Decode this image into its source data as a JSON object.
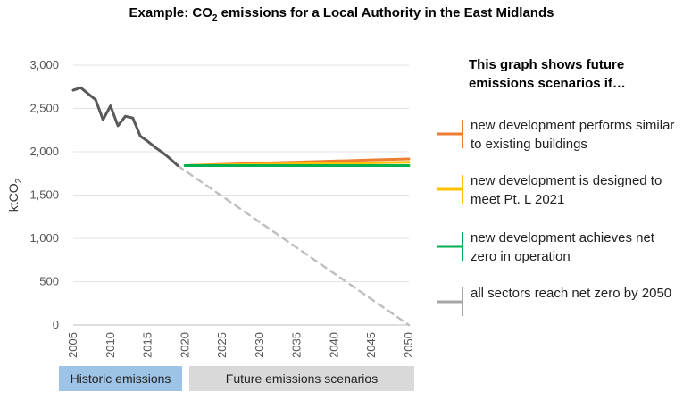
{
  "title_prefix": "Example: CO",
  "title_sub": "2",
  "title_suffix": " emissions for a Local Authority in the East Midlands",
  "chart_data": {
    "type": "line",
    "ylabel": "ktCO",
    "ylabel_sub": "2",
    "ylim": [
      0,
      3000
    ],
    "xlim": [
      2005,
      2050
    ],
    "y_ticks": [
      "0",
      "500",
      "1,000",
      "1,500",
      "2,000",
      "2,500",
      "3,000"
    ],
    "y_tick_values": [
      0,
      500,
      1000,
      1500,
      2000,
      2500,
      3000
    ],
    "x_ticks": [
      "2005",
      "2010",
      "2015",
      "2020",
      "2025",
      "2030",
      "2035",
      "2040",
      "2045",
      "2050"
    ],
    "grid": true,
    "series": [
      {
        "name": "historic",
        "color": "#595959",
        "style": "solid",
        "x": [
          2005,
          2006,
          2007,
          2008,
          2009,
          2010,
          2011,
          2012,
          2013,
          2014,
          2015,
          2016,
          2017,
          2018,
          2019
        ],
        "y": [
          2710,
          2740,
          2670,
          2600,
          2370,
          2530,
          2300,
          2410,
          2390,
          2180,
          2120,
          2050,
          1990,
          1920,
          1840
        ]
      },
      {
        "name": "new development performs similar to existing buildings",
        "color": "#ed7d31",
        "style": "solid",
        "x": [
          2020,
          2025,
          2030,
          2035,
          2040,
          2045,
          2050
        ],
        "y": [
          1840,
          1855,
          1868,
          1880,
          1893,
          1906,
          1918
        ]
      },
      {
        "name": "new development is designed to meet Pt. L 2021",
        "color": "#ffc000",
        "style": "solid",
        "x": [
          2020,
          2025,
          2030,
          2035,
          2040,
          2045,
          2050
        ],
        "y": [
          1840,
          1847,
          1853,
          1860,
          1866,
          1872,
          1879
        ]
      },
      {
        "name": "new development achieves net zero in operation",
        "color": "#00b050",
        "style": "solid",
        "x": [
          2020,
          2050
        ],
        "y": [
          1840,
          1840
        ]
      },
      {
        "name": "all sectors reach net zero by 2050",
        "color": "#bfbfbf",
        "style": "dashed",
        "x": [
          2019,
          2050
        ],
        "y": [
          1840,
          0
        ]
      }
    ]
  },
  "bands": {
    "historic": "Historic emissions",
    "future": "Future emissions scenarios"
  },
  "legend": {
    "heading": "This graph shows future emissions scenarios if…",
    "items": [
      {
        "label": "new development performs similar to existing buildings",
        "color": "#ed7d31"
      },
      {
        "label": "new development is designed to meet Pt. L 2021",
        "color": "#ffc000"
      },
      {
        "label": "new development achieves net zero in operation",
        "color": "#00b050"
      },
      {
        "label": "all sectors reach net zero by 2050",
        "color": "#a6a6a6"
      }
    ]
  }
}
